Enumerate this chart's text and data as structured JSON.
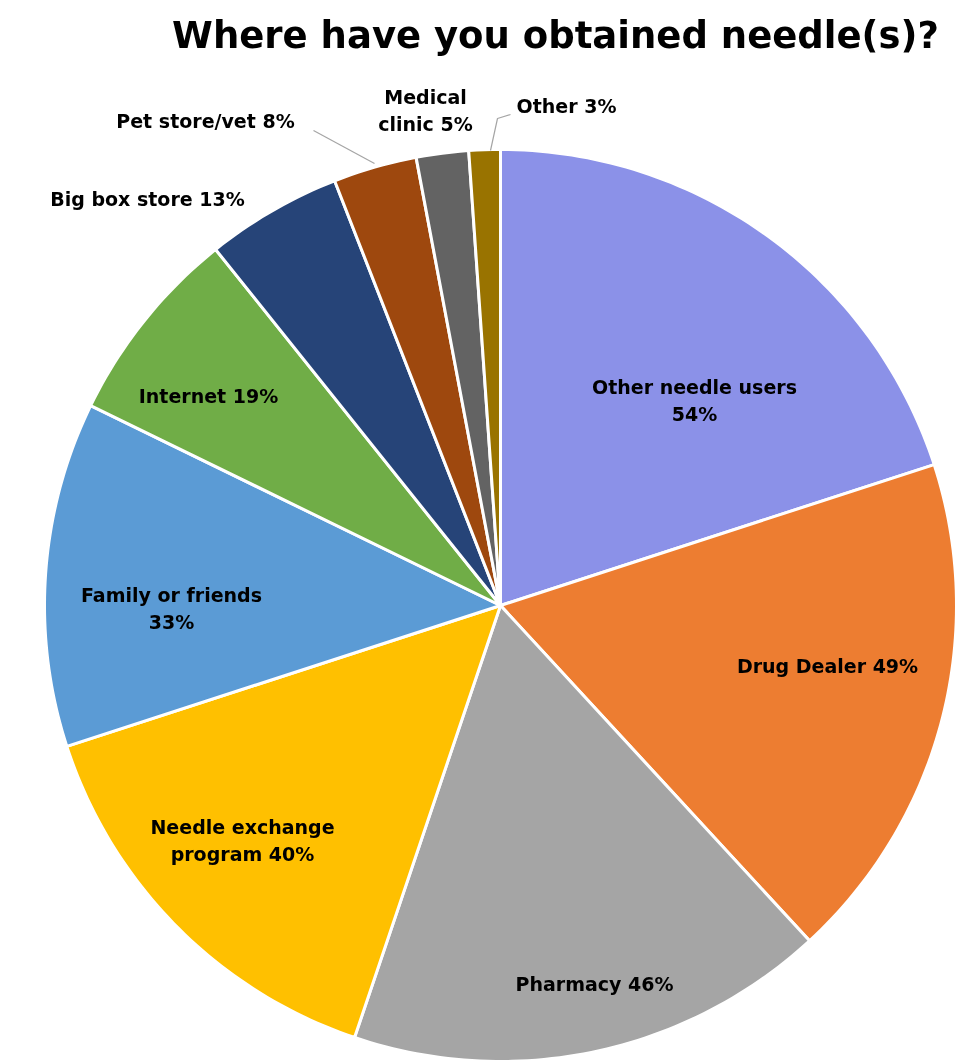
{
  "chart_data": {
    "type": "pie",
    "title": "Where have you obtained needle(s)?",
    "categories": [
      "Other needle users",
      "Drug Dealer",
      "Pharmacy",
      "Needle exchange program",
      "Family or friends",
      "Internet",
      "Big box store",
      "Pet store/vet",
      "Medical clinic",
      "Other"
    ],
    "values": [
      54,
      49,
      46,
      40,
      33,
      19,
      13,
      8,
      5,
      3
    ],
    "value_labels": [
      "54%",
      "49%",
      "46%",
      "40%",
      "33%",
      "19%",
      "13%",
      "8%",
      "5%",
      "3%"
    ],
    "colors": [
      "#8b91e8",
      "#ed7d31",
      "#a5a5a5",
      "#ffc000",
      "#5b9bd5",
      "#70ad47",
      "#264478",
      "#9e480e",
      "#636363",
      "#997300"
    ]
  }
}
